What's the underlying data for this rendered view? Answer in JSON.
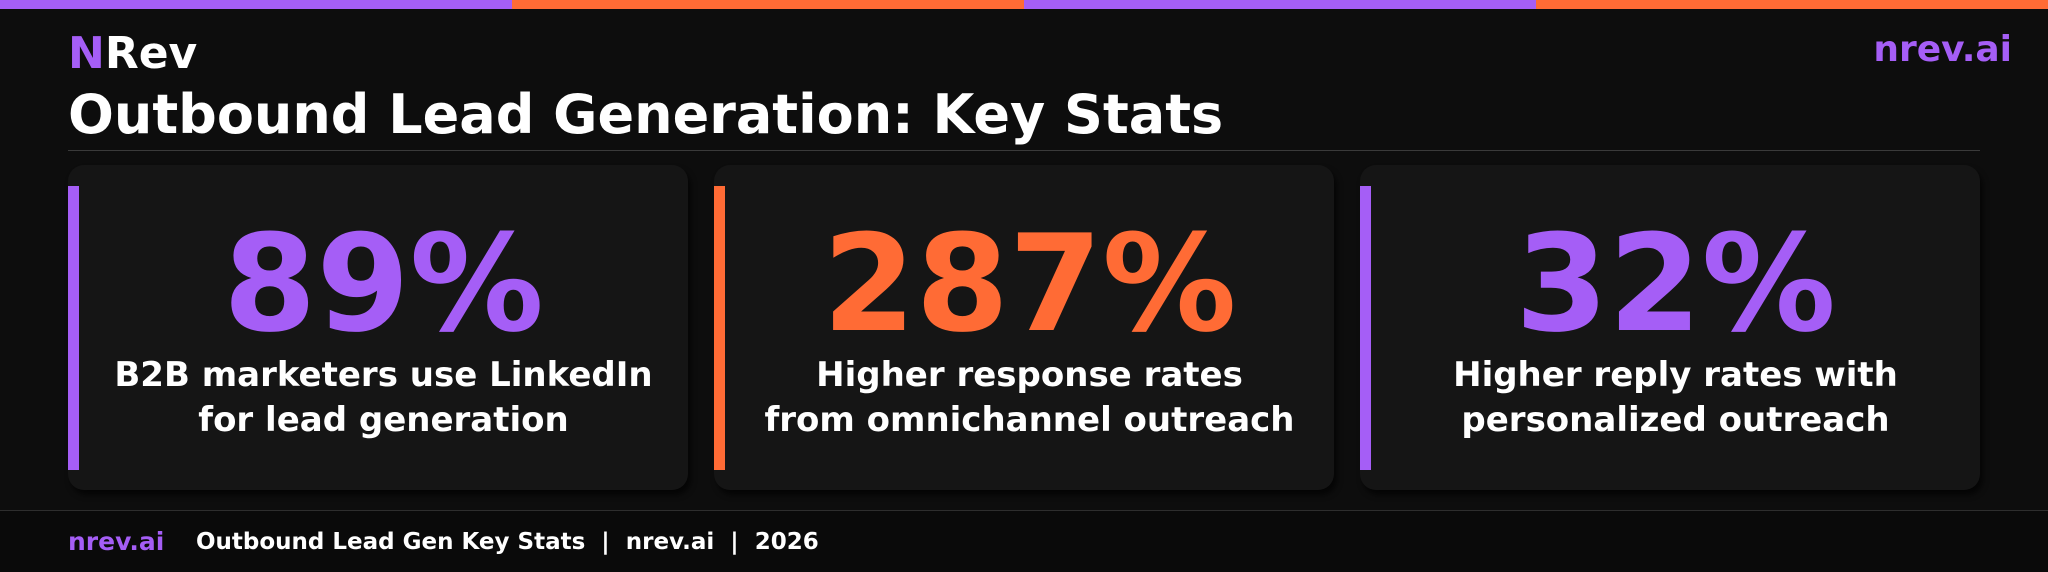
{
  "brand": {
    "logo_initial": "N",
    "logo_rest": "Rev",
    "site": "nrev.ai"
  },
  "colors": {
    "purple": "#a55ef6",
    "orange": "#ff6b35",
    "background": "#0d0d0d",
    "card": "#151515",
    "text": "#ffffff"
  },
  "header": {
    "title": "Outbound Lead Generation: Key Stats"
  },
  "stats": [
    {
      "value": "89%",
      "line1": "B2B marketers use LinkedIn",
      "line2": "for lead generation",
      "accent": "purple"
    },
    {
      "value": "287%",
      "line1": "Higher response rates",
      "line2": "from omnichannel outreach",
      "accent": "orange"
    },
    {
      "value": "32%",
      "line1": "Higher reply rates with",
      "line2": "personalized outreach",
      "accent": "purple"
    }
  ],
  "footer": {
    "brand": "nrev.ai",
    "text": "Outbound Lead Gen Key Stats  |  nrev.ai  |  2026"
  }
}
